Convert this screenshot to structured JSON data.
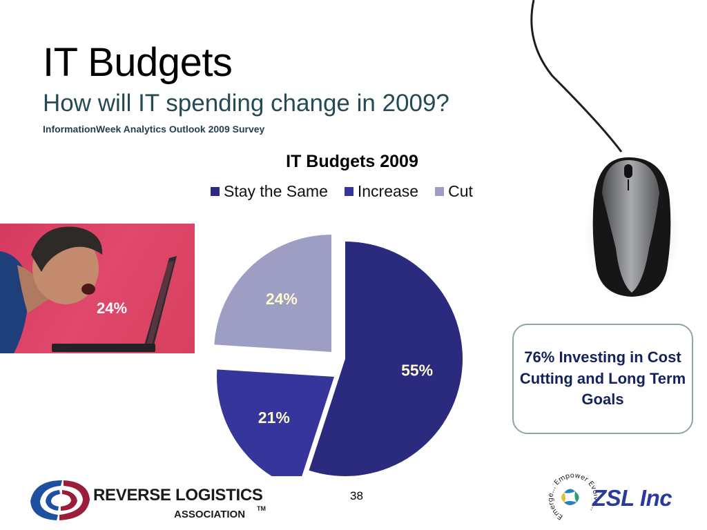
{
  "slide": {
    "title": "IT Budgets",
    "subtitle": "How will IT spending change in 2009?",
    "source": "InformationWeek Analytics Outlook 2009 Survey",
    "page_number": "38"
  },
  "photo": {
    "label": "24%"
  },
  "callout": {
    "text": "76% Investing in Cost Cutting and Long Term Goals"
  },
  "logos": {
    "rla": {
      "line1": "REVERSE LOGISTICS",
      "line2": "ASSOCIATION",
      "tm": "TM"
    },
    "zsl": {
      "name": "ZSL Inc",
      "ring_text": "Emerge... Empower Evolve..."
    }
  },
  "chart_data": {
    "type": "pie",
    "title": "IT Budgets  2009",
    "legend_position": "top",
    "categories": [
      "Stay the Same",
      "Increase",
      "Cut"
    ],
    "values": [
      55,
      21,
      24
    ],
    "labels": [
      "55%",
      "21%",
      "24%"
    ],
    "colors": [
      "#2a2a7e",
      "#35359c",
      "#9e9ec4"
    ],
    "label_color": "#fdfbcf",
    "exploded": true
  }
}
